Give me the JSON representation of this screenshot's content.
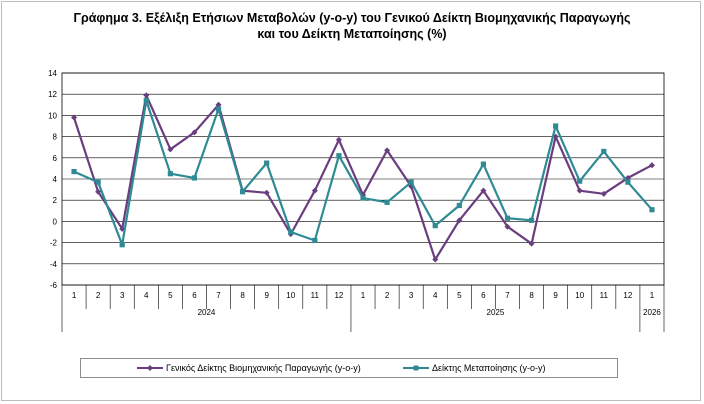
{
  "chart_data": {
    "type": "line",
    "title_line1": "Γράφημα 3. Εξέλιξη Ετήσιων Μεταβολών (y-o-y) του Γενικού Δείκτη Βιομηχανικής Παραγωγής",
    "title_line2": "και του Δείκτη Μεταποίησης (%)",
    "categories": [
      "1",
      "2",
      "3",
      "4",
      "5",
      "6",
      "7",
      "8",
      "9",
      "10",
      "11",
      "12",
      "1",
      "2",
      "3",
      "4",
      "5",
      "6",
      "7",
      "8",
      "9",
      "10",
      "11",
      "12",
      "1"
    ],
    "year_labels": [
      {
        "label": "2024",
        "start": 0,
        "end": 11
      },
      {
        "label": "2025",
        "start": 12,
        "end": 23
      },
      {
        "label": "2026",
        "start": 24,
        "end": 24
      }
    ],
    "ylim": [
      -6,
      14
    ],
    "yticks": [
      "14",
      "12",
      "10",
      "8",
      "6",
      "4",
      "2",
      "0",
      "-2",
      "-4",
      "-6"
    ],
    "ytick_values": [
      14,
      12,
      10,
      8,
      6,
      4,
      2,
      0,
      -2,
      -4,
      -6
    ],
    "grid": true,
    "legend_position": "bottom",
    "series": [
      {
        "name": "Γενικός Δείκτης Βιομηχανικής Παραγωγής (y-o-y)",
        "color": "#6a3d7f",
        "marker": "diamond",
        "values": [
          9.8,
          2.8,
          -0.7,
          11.9,
          6.8,
          8.4,
          11.0,
          2.9,
          2.7,
          -1.2,
          2.9,
          7.7,
          2.5,
          6.7,
          3.3,
          -3.6,
          0.1,
          2.9,
          -0.5,
          -2.1,
          8.0,
          2.9,
          2.6,
          4.1,
          5.3
        ]
      },
      {
        "name": "Δείκτης Μεταποίησης (y-o-y)",
        "color": "#2e8b94",
        "marker": "square",
        "values": [
          4.7,
          3.7,
          -2.2,
          11.4,
          4.5,
          4.1,
          10.6,
          2.8,
          5.5,
          -1.0,
          -1.8,
          6.2,
          2.2,
          1.8,
          3.7,
          -0.4,
          1.5,
          5.4,
          0.3,
          0.1,
          9.0,
          3.8,
          6.6,
          3.7,
          1.1
        ]
      }
    ]
  }
}
